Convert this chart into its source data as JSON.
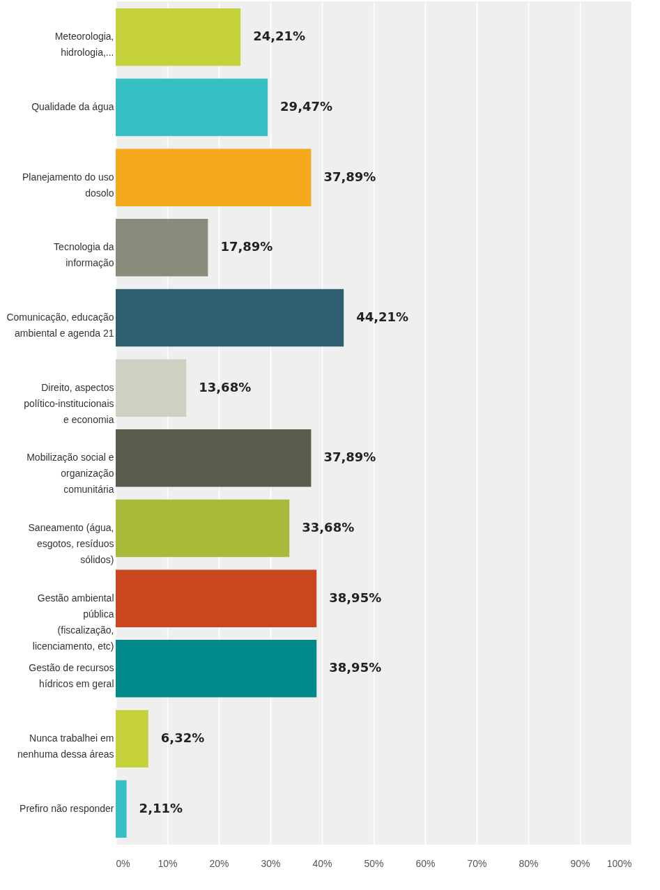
{
  "chart_data": {
    "type": "bar",
    "orientation": "horizontal",
    "categories": [
      "Meteorologia, hidrologia,...",
      "Qualidade da água",
      "Planejamento do uso dosolo",
      "Tecnologia da informação",
      "Comunicação, educação ambiental e agenda 21",
      "Direito, aspectos político-institucionais e economia",
      "Mobilização social e organização comunitária",
      "Saneamento (água, esgotos, resíduos sólidos)",
      "Gestão ambiental pública (fiscalização, licenciamento, etc)",
      "Gestão de recursos hídricos em geral",
      "Nunca trabalhei em nenhuma dessa áreas",
      "Prefiro não responder"
    ],
    "values": [
      24.21,
      29.47,
      37.89,
      17.89,
      44.21,
      13.68,
      37.89,
      33.68,
      38.95,
      38.95,
      6.32,
      2.11
    ],
    "value_labels": [
      "24,21%",
      "29,47%",
      "37,89%",
      "17,89%",
      "44,21%",
      "13,68%",
      "37,89%",
      "33,68%",
      "38,95%",
      "38,95%",
      "6,32%",
      "2,11%"
    ],
    "colors": [
      "#c5d13b",
      "#36bfc3",
      "#f5aa1e",
      "#8b8b7b",
      "#2f5f6f",
      "#cfcfc2",
      "#5b5b4c",
      "#a9ba3b",
      "#c9461f",
      "#00888a",
      "#c5d13b",
      "#36bfc3"
    ],
    "xlim": [
      0,
      100
    ],
    "xticks": [
      {
        "value": 0,
        "label": "0%"
      },
      {
        "value": 10,
        "label": "10%"
      },
      {
        "value": 20,
        "label": "20%"
      },
      {
        "value": 30,
        "label": "30%"
      },
      {
        "value": 40,
        "label": "40%"
      },
      {
        "value": 50,
        "label": "50%"
      },
      {
        "value": 60,
        "label": "60%"
      },
      {
        "value": 70,
        "label": "70%"
      },
      {
        "value": 80,
        "label": "80%"
      },
      {
        "value": 90,
        "label": "90%"
      },
      {
        "value": 100,
        "label": "100%"
      }
    ],
    "grid": "x"
  }
}
